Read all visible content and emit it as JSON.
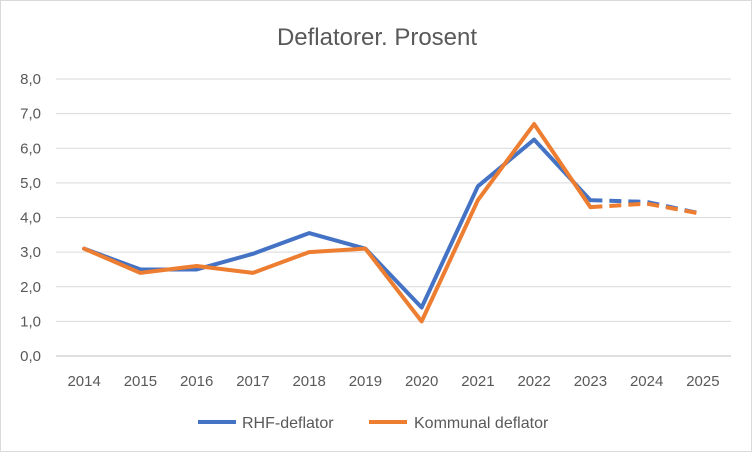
{
  "chart_data": {
    "type": "line",
    "title": "Deflatorer. Prosent",
    "xlabel": "",
    "ylabel": "",
    "categories": [
      "2014",
      "2015",
      "2016",
      "2017",
      "2018",
      "2019",
      "2020",
      "2021",
      "2022",
      "2023",
      "2024",
      "2025"
    ],
    "ylim": [
      0,
      8
    ],
    "yticks": [
      "0,0",
      "1,0",
      "2,0",
      "3,0",
      "4,0",
      "5,0",
      "6,0",
      "7,0",
      "8,0"
    ],
    "grid": true,
    "legend_position": "bottom",
    "forecast_from": "2023",
    "series": [
      {
        "name": "RHF-deflator",
        "color": "#4472c4",
        "values": [
          3.1,
          2.5,
          2.5,
          2.95,
          3.55,
          3.1,
          1.4,
          4.9,
          6.25,
          4.5,
          4.45,
          4.1
        ]
      },
      {
        "name": "Kommunal deflator",
        "color": "#ed7d31",
        "values": [
          3.1,
          2.4,
          2.6,
          2.4,
          3.0,
          3.1,
          1.0,
          4.5,
          6.7,
          4.3,
          4.4,
          4.1
        ]
      }
    ]
  }
}
